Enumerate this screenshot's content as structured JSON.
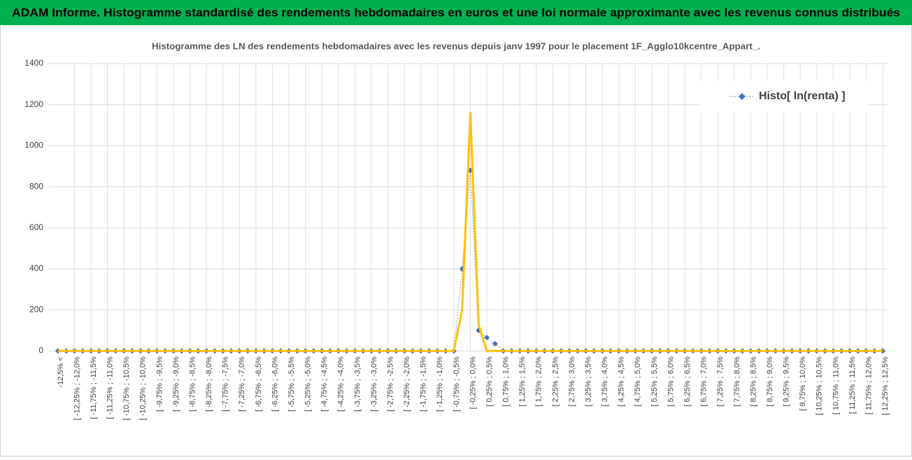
{
  "header": {
    "title": "ADAM Informe. Histogramme standardisé des rendements hebdomadaires en euros et une loi normale approximante avec les revenus connus distribués"
  },
  "chart_data": {
    "type": "line",
    "title": "Histogramme des LN des rendements hebdomadaires avec les revenus depuis janv 1997 pour le placement 1F_Agglo10kcentre_Appart_.",
    "categories": [
      "-12,5% <",
      null,
      "[ -12,25% ; -12,0%",
      null,
      "[ -11,75% ; -11,5%",
      null,
      "[ -11,25% ; -11,0%",
      null,
      "[ -10,75% ; -10,5%",
      null,
      "[ -10,25% ; -10,0%",
      null,
      "[ -9,75% ; -9,5%",
      null,
      "[ -9,25% ; -9,0%",
      null,
      "[ -8,75% ; -8,5%",
      null,
      "[ -8,25% ; -8,0%",
      null,
      "[ -7,75% ; -7,5%",
      null,
      "[ -7,25% ; -7,0%",
      null,
      "[ -6,75% ; -6,5%",
      null,
      "[ -6,25% ; -6,0%",
      null,
      "[ -5,75% ; -5,5%",
      null,
      "[ -5,25% ; -5,0%",
      null,
      "[ -4,75% ; -4,5%",
      null,
      "[ -4,25% ; -4,0%",
      null,
      "[ -3,75% ; -3,5%",
      null,
      "[ -3,25% ; -3,0%",
      null,
      "[ -2,75% ; -2,5%",
      null,
      "[ -2,25% ; -2,0%",
      null,
      "[ -1,75% ; -1,5%",
      null,
      "[ -1,25% ; -1,0%",
      null,
      "[ -0,75% ; -0,5%",
      null,
      "[ -0,25% ; 0,0%",
      null,
      "[ 0,25% ; 0,5%",
      null,
      "[ 0,75% ; 1,0%",
      null,
      "[ 1,25% ; 1,5%",
      null,
      "[ 1,75% ; 2,0%",
      null,
      "[ 2,25% ; 2,5%",
      null,
      "[ 2,75% ; 3,0%",
      null,
      "[ 3,25% ; 3,5%",
      null,
      "[ 3,75% ; 4,0%",
      null,
      "[ 4,25% ; 4,5%",
      null,
      "[ 4,75% ; 5,0%",
      null,
      "[ 5,25% ; 5,5%",
      null,
      "[ 5,75% ; 6,0%",
      null,
      "[ 6,25% ; 6,5%",
      null,
      "[ 6,75% ; 7,0%",
      null,
      "[ 7,25% ; 7,5%",
      null,
      "[ 7,75% ; 8,0%",
      null,
      "[ 8,25% ; 8,5%",
      null,
      "[ 8,75% ; 9,0%",
      null,
      "[ 9,25% ; 9,5%",
      null,
      "[ 9,75% ; 10,0%",
      null,
      "[ 10,25% ; 10,5%",
      null,
      "[ 10,75% ; 11,0%",
      null,
      "[ 11,25% ; 11,5%",
      null,
      "[ 11,75% ; 12,0%",
      null,
      "[ 12,25% ; 12,5%"
    ],
    "series": [
      {
        "name": "Histo[ ln(renta) ]",
        "color": "#4472c4",
        "values": [
          0,
          0,
          0,
          0,
          0,
          0,
          0,
          0,
          0,
          0,
          0,
          0,
          0,
          0,
          0,
          0,
          0,
          0,
          0,
          0,
          0,
          0,
          0,
          0,
          0,
          0,
          0,
          0,
          0,
          0,
          0,
          0,
          0,
          0,
          0,
          0,
          0,
          0,
          0,
          0,
          0,
          0,
          0,
          0,
          0,
          0,
          0,
          0,
          0,
          400,
          880,
          100,
          65,
          35,
          0,
          0,
          0,
          0,
          0,
          0,
          0,
          0,
          0,
          0,
          0,
          0,
          0,
          0,
          0,
          0,
          0,
          0,
          0,
          0,
          0,
          0,
          0,
          0,
          0,
          0,
          0,
          0,
          0,
          0,
          0,
          0,
          0,
          0,
          0,
          0,
          0,
          0,
          0,
          0,
          0,
          0,
          0,
          0,
          0,
          0,
          0
        ]
      },
      {
        "color": "#ffc000",
        "values": [
          0,
          0,
          0,
          0,
          0,
          0,
          0,
          0,
          0,
          0,
          0,
          0,
          0,
          0,
          0,
          0,
          0,
          0,
          0,
          0,
          0,
          0,
          0,
          0,
          0,
          0,
          0,
          0,
          0,
          0,
          0,
          0,
          0,
          0,
          0,
          0,
          0,
          0,
          0,
          0,
          0,
          0,
          0,
          0,
          0,
          0,
          0,
          0,
          0,
          200,
          1160,
          130,
          0,
          0,
          0,
          0,
          0,
          0,
          0,
          0,
          0,
          0,
          0,
          0,
          0,
          0,
          0,
          0,
          0,
          0,
          0,
          0,
          0,
          0,
          0,
          0,
          0,
          0,
          0,
          0,
          0,
          0,
          0,
          0,
          0,
          0,
          0,
          0,
          0,
          0,
          0,
          0,
          0,
          0,
          0,
          0,
          0,
          0,
          0,
          0,
          0
        ]
      }
    ],
    "ylim": [
      0,
      1400
    ],
    "yticks": [
      0,
      200,
      400,
      600,
      800,
      1000,
      1200,
      1400
    ],
    "grid": true,
    "legend": "top-right"
  }
}
